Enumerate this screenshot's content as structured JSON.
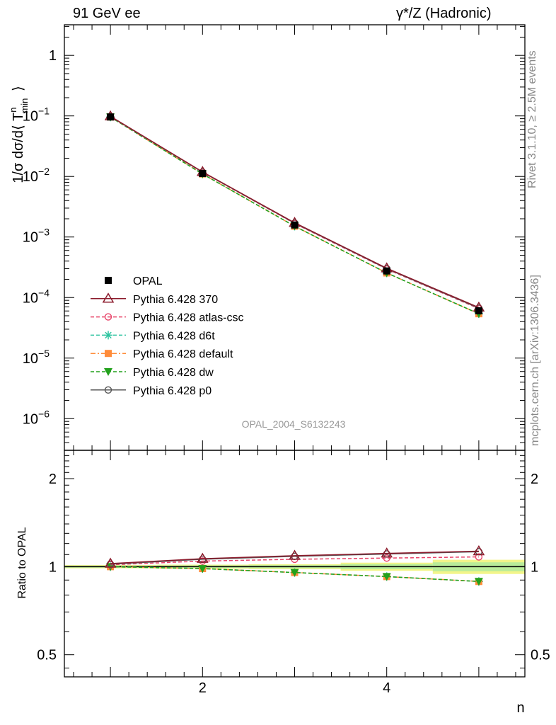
{
  "header": {
    "left": "91 GeV ee",
    "right": "γ*/Z (Hadronic)"
  },
  "side_labels": {
    "rivet": "Rivet 3.1.10, ≥ 2.5M events",
    "mcplots": "mcplots.cern.ch [arXiv:1306.3436]"
  },
  "chart_data": [
    {
      "type": "line",
      "panel": "main",
      "ylabel": "1/σ dσ/d⟨ T^n_min ⟩",
      "yscale": "log",
      "xlim": [
        0.5,
        5.5
      ],
      "ylim": [
        3e-07,
        3.2
      ],
      "yticks": [
        {
          "value": 1,
          "base": "1",
          "exp": ""
        },
        {
          "value": 0.1,
          "base": "10",
          "exp": "−1"
        },
        {
          "value": 0.01,
          "base": "10",
          "exp": "−2"
        },
        {
          "value": 0.001,
          "base": "10",
          "exp": "−3"
        },
        {
          "value": 0.0001,
          "base": "10",
          "exp": "−4"
        },
        {
          "value": 1e-05,
          "base": "10",
          "exp": "−5"
        },
        {
          "value": 1e-06,
          "base": "10",
          "exp": "−6"
        }
      ],
      "x": [
        1,
        2,
        3,
        4,
        5
      ],
      "annotation": "OPAL_2004_S6132243",
      "legend_position": "left",
      "series": [
        {
          "name": "OPAL",
          "color": "#000000",
          "marker": "square-filled",
          "dash": "none",
          "values": [
            0.096,
            0.0112,
            0.00158,
            0.000275,
            6.05e-05
          ]
        },
        {
          "name": "Pythia 6.428 370",
          "color": "#8b1a2b",
          "marker": "triangle-open",
          "dash": "solid",
          "values": [
            0.0985,
            0.0119,
            0.00172,
            0.000305,
            6.85e-05
          ]
        },
        {
          "name": "Pythia 6.428 atlas-csc",
          "color": "#e8456a",
          "marker": "circle-open",
          "dash": "dashed",
          "values": [
            0.0975,
            0.0117,
            0.00167,
            0.000295,
            6.55e-05
          ]
        },
        {
          "name": "Pythia 6.428 d6t",
          "color": "#2ec4a0",
          "marker": "star",
          "dash": "dashed",
          "values": [
            0.096,
            0.011,
            0.00151,
            0.000255,
            5.4e-05
          ]
        },
        {
          "name": "Pythia 6.428 default",
          "color": "#ff8c3a",
          "marker": "square-filled",
          "dash": "dashdot",
          "values": [
            0.096,
            0.011,
            0.00151,
            0.000255,
            5.4e-05
          ]
        },
        {
          "name": "Pythia 6.428 dw",
          "color": "#22a11c",
          "marker": "triangle-down-filled",
          "dash": "dashed",
          "values": [
            0.096,
            0.011,
            0.00151,
            0.000255,
            5.4e-05
          ]
        },
        {
          "name": "Pythia 6.428 p0",
          "color": "#555555",
          "marker": "circle-open",
          "dash": "solid",
          "values": [
            0.0975,
            0.0118,
            0.0017,
            0.0003,
            6.7e-05
          ]
        }
      ]
    },
    {
      "type": "line",
      "panel": "ratio",
      "ylabel": "Ratio to OPAL",
      "xlabel": "n",
      "yscale": "log",
      "xlim": [
        0.5,
        5.5
      ],
      "ylim": [
        0.42,
        2.5
      ],
      "xticks": [
        "2",
        "4"
      ],
      "yticks": [
        {
          "value": 2,
          "label": "2"
        },
        {
          "value": 1,
          "label": "1"
        },
        {
          "value": 0.5,
          "label": "0.5"
        }
      ],
      "x": [
        1,
        2,
        3,
        4,
        5
      ],
      "series": [
        {
          "name": "Pythia 6.428 370",
          "color": "#8b1a2b",
          "marker": "triangle-open",
          "dash": "solid",
          "values": [
            1.025,
            1.065,
            1.09,
            1.11,
            1.13
          ]
        },
        {
          "name": "Pythia 6.428 atlas-csc",
          "color": "#e8456a",
          "marker": "circle-open",
          "dash": "dashed",
          "values": [
            1.015,
            1.045,
            1.06,
            1.07,
            1.08
          ]
        },
        {
          "name": "Pythia 6.428 d6t",
          "color": "#2ec4a0",
          "marker": "star",
          "dash": "dashed",
          "values": [
            1.0,
            0.985,
            0.955,
            0.925,
            0.89
          ]
        },
        {
          "name": "Pythia 6.428 default",
          "color": "#ff8c3a",
          "marker": "square-filled",
          "dash": "dashdot",
          "values": [
            1.0,
            0.985,
            0.955,
            0.925,
            0.89
          ]
        },
        {
          "name": "Pythia 6.428 dw",
          "color": "#22a11c",
          "marker": "triangle-down-filled",
          "dash": "dashed",
          "values": [
            1.0,
            0.985,
            0.955,
            0.925,
            0.89
          ]
        },
        {
          "name": "Pythia 6.428 p0",
          "color": "#555555",
          "marker": "circle-open",
          "dash": "solid",
          "values": [
            1.02,
            1.06,
            1.085,
            1.105,
            1.125
          ]
        }
      ]
    }
  ]
}
